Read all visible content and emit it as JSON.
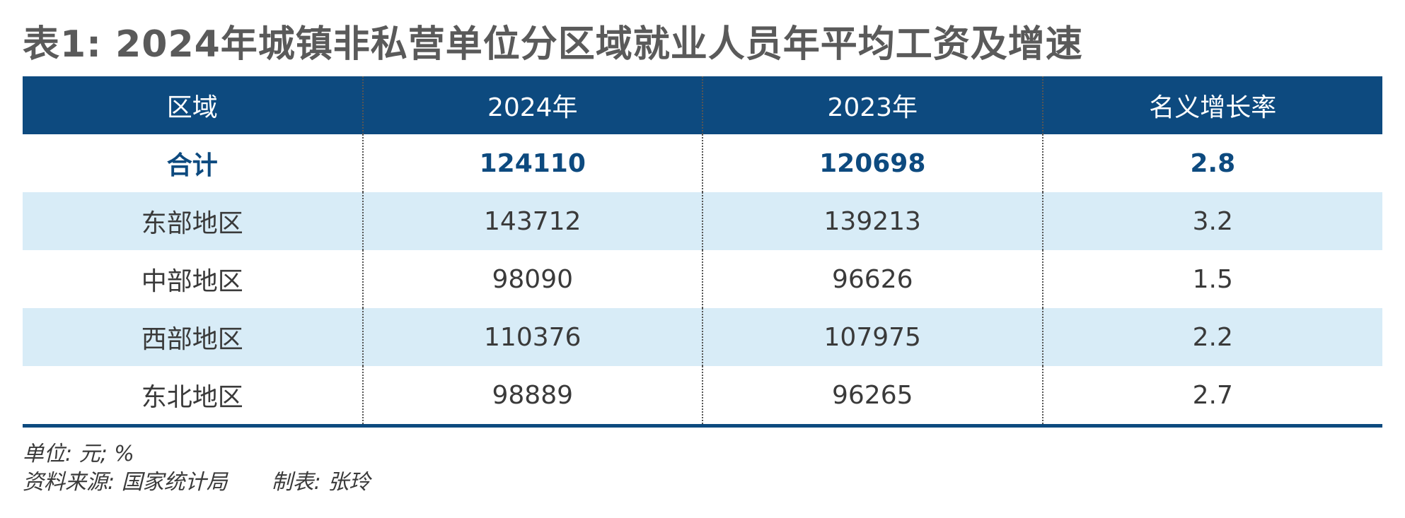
{
  "title": "表1: 2024年城镇非私营单位分区域就业人员年平均工资及增速",
  "table": {
    "headers": [
      "区域",
      "2024年",
      "2023年",
      "名义增长率"
    ],
    "rows": [
      [
        "合计",
        "124110",
        "120698",
        "2.8"
      ],
      [
        "东部地区",
        "143712",
        "139213",
        "3.2"
      ],
      [
        "中部地区",
        "98090",
        "96626",
        "1.5"
      ],
      [
        "西部地区",
        "110376",
        "107975",
        "2.2"
      ],
      [
        "东北地区",
        "98889",
        "96265",
        "2.7"
      ]
    ]
  },
  "notes": {
    "unit": "单位: 元; %",
    "source": "资料来源: 国家统计局",
    "author": "制表: 张玲"
  },
  "colors": {
    "header_bg": "#0d4a7f",
    "stripe_bg": "#d8ecf7",
    "title_text": "#5a5a5a"
  }
}
